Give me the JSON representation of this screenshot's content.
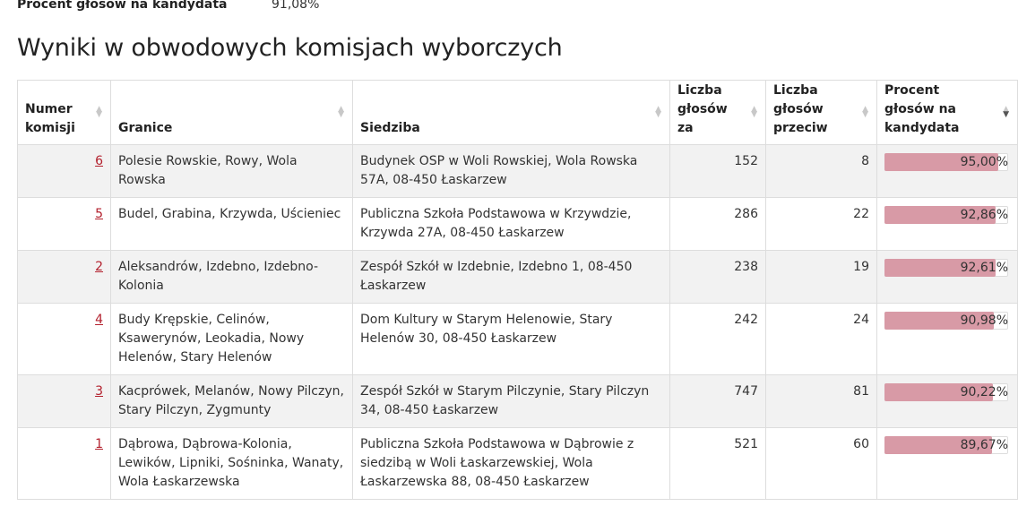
{
  "summary": {
    "label": "Procent głosów na kandydata",
    "value": "91,08%"
  },
  "heading": "Wyniki w obwodowych komisjach wyborczych",
  "table": {
    "headers": {
      "numer": "Numer komisji",
      "granice": "Granice",
      "siedziba": "Siedziba",
      "za": "Liczba głosów za",
      "przeciw": "Liczba głosów przeciw",
      "procent": "Procent głosów na kandydata"
    },
    "rows": [
      {
        "numer": "6",
        "granice": "Polesie Rowskie, Rowy, Wola Rowska",
        "siedziba": "Budynek OSP w Woli Rowskiej, Wola Rowska 57A, 08-450 Łaskarzew",
        "za": "152",
        "przeciw": "8",
        "procent": "95,00%",
        "fraction": 0.95
      },
      {
        "numer": "5",
        "granice": "Budel, Grabina, Krzywda, Uścieniec",
        "siedziba": "Publiczna Szkoła Podstawowa w Krzywdzie, Krzywda 27A, 08-450 Łaskarzew",
        "za": "286",
        "przeciw": "22",
        "procent": "92,86%",
        "fraction": 0.9286
      },
      {
        "numer": "2",
        "granice": "Aleksandrów, Izdebno, Izdebno-Kolonia",
        "siedziba": "Zespół Szkół w Izdebnie, Izdebno 1, 08-450 Łaskarzew",
        "za": "238",
        "przeciw": "19",
        "procent": "92,61%",
        "fraction": 0.9261
      },
      {
        "numer": "4",
        "granice": "Budy Krępskie, Celinów, Ksawerynów, Leokadia, Nowy Helenów, Stary Helenów",
        "siedziba": "Dom Kultury w Starym Helenowie, Stary Helenów 30, 08-450 Łaskarzew",
        "za": "242",
        "przeciw": "24",
        "procent": "90,98%",
        "fraction": 0.9098
      },
      {
        "numer": "3",
        "granice": "Kacprówek, Melanów, Nowy Pilczyn, Stary Pilczyn, Zygmunty",
        "siedziba": "Zespół Szkół w Starym Pilczynie, Stary Pilczyn 34, 08-450 Łaskarzew",
        "za": "747",
        "przeciw": "81",
        "procent": "90,22%",
        "fraction": 0.9022
      },
      {
        "numer": "1",
        "granice": "Dąbrowa, Dąbrowa-Kolonia, Lewików, Lipniki, Sośninka, Wanaty, Wola Łaskarzewska",
        "siedziba": "Publiczna Szkoła Podstawowa w Dąbrowie z siedzibą w Woli Łaskarzewskiej, Wola Łaskarzewska 88, 08-450 Łaskarzew",
        "za": "521",
        "przeciw": "60",
        "procent": "89,67%",
        "fraction": 0.8967
      }
    ]
  },
  "colors": {
    "bar": "#d89aa6",
    "link": "#b3212e"
  },
  "icons": {
    "sort": "sort-arrows-icon"
  }
}
